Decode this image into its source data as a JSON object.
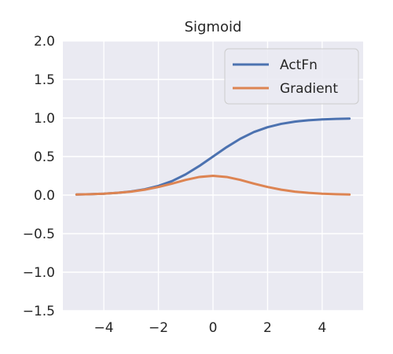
{
  "chart_data": {
    "type": "line",
    "title": "Sigmoid",
    "xlabel": "",
    "ylabel": "",
    "xlim": [
      -5.5,
      5.5
    ],
    "ylim": [
      -1.5,
      2.0
    ],
    "xticks": [
      -4,
      -2,
      0,
      2,
      4
    ],
    "xtick_labels": [
      "−4",
      "−2",
      "0",
      "2",
      "4"
    ],
    "yticks": [
      2.0,
      1.5,
      1.0,
      0.5,
      0.0,
      -0.5,
      -1.0,
      -1.5
    ],
    "ytick_labels": [
      "2.0",
      "1.5",
      "1.0",
      "0.5",
      "0.0",
      "−0.5",
      "−1.0",
      "−1.5"
    ],
    "grid": true,
    "legend_position": "top-right",
    "x": [
      -5,
      -4.5,
      -4,
      -3.5,
      -3,
      -2.5,
      -2,
      -1.5,
      -1,
      -0.5,
      0,
      0.5,
      1,
      1.5,
      2,
      2.5,
      3,
      3.5,
      4,
      4.5,
      5
    ],
    "series": [
      {
        "name": "ActFn",
        "color": "#4c72b0",
        "values": [
          0.007,
          0.011,
          0.018,
          0.029,
          0.047,
          0.076,
          0.119,
          0.182,
          0.269,
          0.378,
          0.5,
          0.622,
          0.731,
          0.818,
          0.881,
          0.924,
          0.953,
          0.971,
          0.982,
          0.989,
          0.993
        ]
      },
      {
        "name": "Gradient",
        "color": "#dd8452",
        "values": [
          0.007,
          0.011,
          0.018,
          0.029,
          0.045,
          0.07,
          0.105,
          0.149,
          0.197,
          0.235,
          0.25,
          0.235,
          0.197,
          0.149,
          0.105,
          0.07,
          0.045,
          0.029,
          0.018,
          0.011,
          0.007
        ]
      }
    ]
  }
}
